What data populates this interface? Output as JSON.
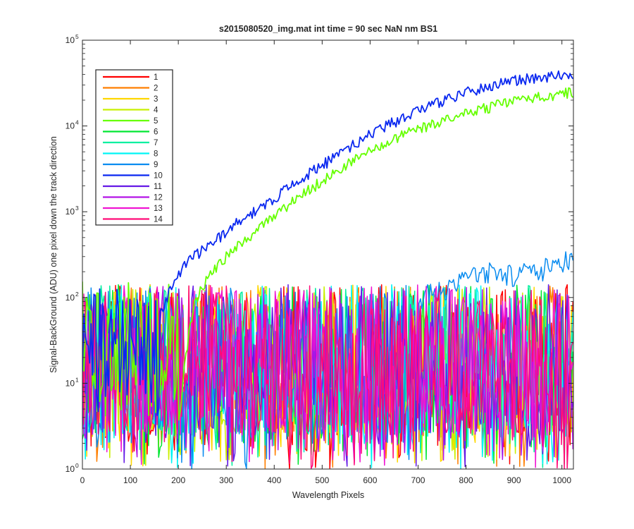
{
  "chart_data": {
    "type": "line",
    "title": "s2015080520_img.mat int time = 90 sec  NaN nm BS1",
    "xlabel": "Wavelength Pixels",
    "ylabel": "Signal-BackGround (ADU) one pixel down the track direction",
    "xlim": [
      0,
      1024
    ],
    "ylim": [
      1,
      100000
    ],
    "yscale": "log",
    "grid": false,
    "legend_position": "top-left",
    "x_ticks": [
      0,
      100,
      200,
      300,
      400,
      500,
      600,
      700,
      800,
      900,
      1000
    ],
    "x_tick_labels": [
      "0",
      "100",
      "200",
      "300",
      "400",
      "500",
      "600",
      "700",
      "800",
      "900",
      "1000"
    ],
    "y_ticks": [
      1,
      10,
      100,
      1000,
      10000,
      100000
    ],
    "y_tick_labels": [
      {
        "base": "10",
        "exp": "0"
      },
      {
        "base": "10",
        "exp": "1"
      },
      {
        "base": "10",
        "exp": "2"
      },
      {
        "base": "10",
        "exp": "3"
      },
      {
        "base": "10",
        "exp": "4"
      },
      {
        "base": "10",
        "exp": "5"
      }
    ],
    "series": [
      {
        "name": "1",
        "color": "#ff0000",
        "kind": "noise"
      },
      {
        "name": "2",
        "color": "#ff7f00",
        "kind": "noise"
      },
      {
        "name": "3",
        "color": "#ffd700",
        "kind": "noise"
      },
      {
        "name": "4",
        "color": "#c8f000",
        "kind": "noise"
      },
      {
        "name": "5",
        "color": "#66ff00",
        "kind": "signal",
        "x": [
          200,
          215,
          230,
          245,
          260,
          280,
          300,
          330,
          360,
          400,
          450,
          500,
          550,
          600,
          650,
          700,
          750,
          800,
          850,
          900,
          950,
          1000,
          1024
        ],
        "y": [
          3,
          20,
          70,
          120,
          170,
          220,
          300,
          420,
          580,
          920,
          1500,
          2300,
          3500,
          5100,
          7000,
          9200,
          11500,
          14000,
          16800,
          19500,
          22000,
          24000,
          24500
        ]
      },
      {
        "name": "6",
        "color": "#00e632",
        "kind": "noise"
      },
      {
        "name": "7",
        "color": "#00f0a0",
        "kind": "noise"
      },
      {
        "name": "8",
        "color": "#00f5f5",
        "kind": "noise"
      },
      {
        "name": "9",
        "color": "#0a8cf0",
        "kind": "noise",
        "x": [
          700,
          760,
          800,
          850,
          900,
          950,
          1000,
          1024
        ],
        "y": [
          100,
          130,
          180,
          200,
          190,
          210,
          250,
          300
        ]
      },
      {
        "name": "10",
        "color": "#0a28f0",
        "kind": "signal",
        "x": [
          160,
          180,
          200,
          215,
          230,
          245,
          260,
          280,
          300,
          330,
          360,
          400,
          450,
          500,
          550,
          600,
          650,
          700,
          750,
          800,
          850,
          900,
          950,
          1000,
          1024
        ],
        "y": [
          60,
          110,
          180,
          240,
          290,
          340,
          390,
          470,
          580,
          800,
          1000,
          1450,
          2300,
          3500,
          5300,
          7900,
          11200,
          15000,
          19500,
          24500,
          29500,
          34000,
          37000,
          39500,
          40500
        ]
      },
      {
        "name": "11",
        "color": "#6419e6",
        "kind": "noise"
      },
      {
        "name": "12",
        "color": "#b414e6",
        "kind": "noise"
      },
      {
        "name": "13",
        "color": "#f014d2",
        "kind": "noise"
      },
      {
        "name": "14",
        "color": "#ff0a78",
        "kind": "noise"
      }
    ]
  }
}
